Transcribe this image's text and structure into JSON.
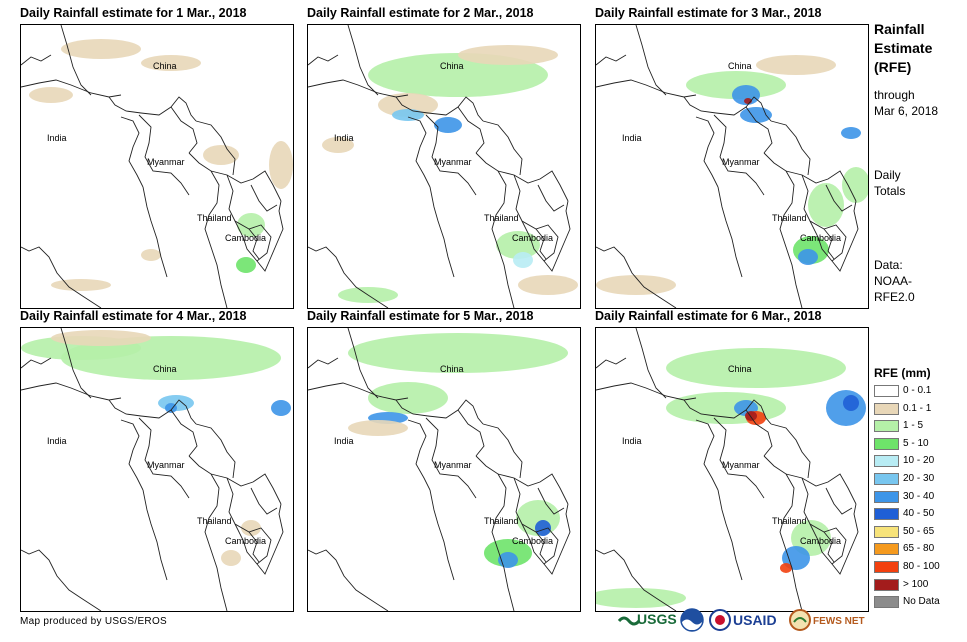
{
  "panels": [
    {
      "title": "Daily Rainfall estimate for 1 Mar., 2018",
      "date": "1 Mar., 2018"
    },
    {
      "title": "Daily Rainfall estimate for 2 Mar., 2018",
      "date": "2 Mar., 2018"
    },
    {
      "title": "Daily Rainfall estimate for 3 Mar., 2018",
      "date": "3 Mar., 2018"
    },
    {
      "title": "Daily Rainfall estimate for 4 Mar., 2018",
      "date": "4 Mar., 2018"
    },
    {
      "title": "Daily Rainfall estimate for 5 Mar., 2018",
      "date": "5 Mar., 2018"
    },
    {
      "title": "Daily Rainfall estimate for 6 Mar., 2018",
      "date": "6 Mar., 2018"
    }
  ],
  "country_labels": {
    "china": "China",
    "india": "India",
    "myanmar": "Myanmar",
    "thailand": "Thailand",
    "cambodia": "Cambodia"
  },
  "side": {
    "title_line1": "Rainfall",
    "title_line2": "Estimate",
    "title_line3": "(RFE)",
    "through_line1": "through",
    "through_line2": "Mar 6, 2018",
    "totals_line1": "Daily",
    "totals_line2": "Totals",
    "data_line1": "Data:",
    "data_line2": "NOAA-",
    "data_line3": "RFE2.0"
  },
  "legend": {
    "title": "RFE (mm)",
    "items": [
      {
        "label": "0 - 0.1",
        "color": "#ffffff"
      },
      {
        "label": "0.1 - 1",
        "color": "#e8d7b8"
      },
      {
        "label": "1 - 5",
        "color": "#b5f0a8"
      },
      {
        "label": "5 - 10",
        "color": "#6ee36a"
      },
      {
        "label": "10 - 20",
        "color": "#b8ecf4"
      },
      {
        "label": "20 - 30",
        "color": "#78c6ef"
      },
      {
        "label": "30 - 40",
        "color": "#3d95e8"
      },
      {
        "label": "40 - 50",
        "color": "#1f5fd6"
      },
      {
        "label": "50 - 65",
        "color": "#f7e37a"
      },
      {
        "label": "65 - 80",
        "color": "#f59a1e"
      },
      {
        "label": "80 - 100",
        "color": "#f2400f"
      },
      {
        "label": "> 100",
        "color": "#a31c1c"
      },
      {
        "label": "No Data",
        "color": "#8c8c8c"
      }
    ]
  },
  "credit": "Map produced by USGS/EROS",
  "logos": {
    "usgs": "USGS",
    "usaid": "USAID",
    "fewsnet": "FEWS NET"
  }
}
